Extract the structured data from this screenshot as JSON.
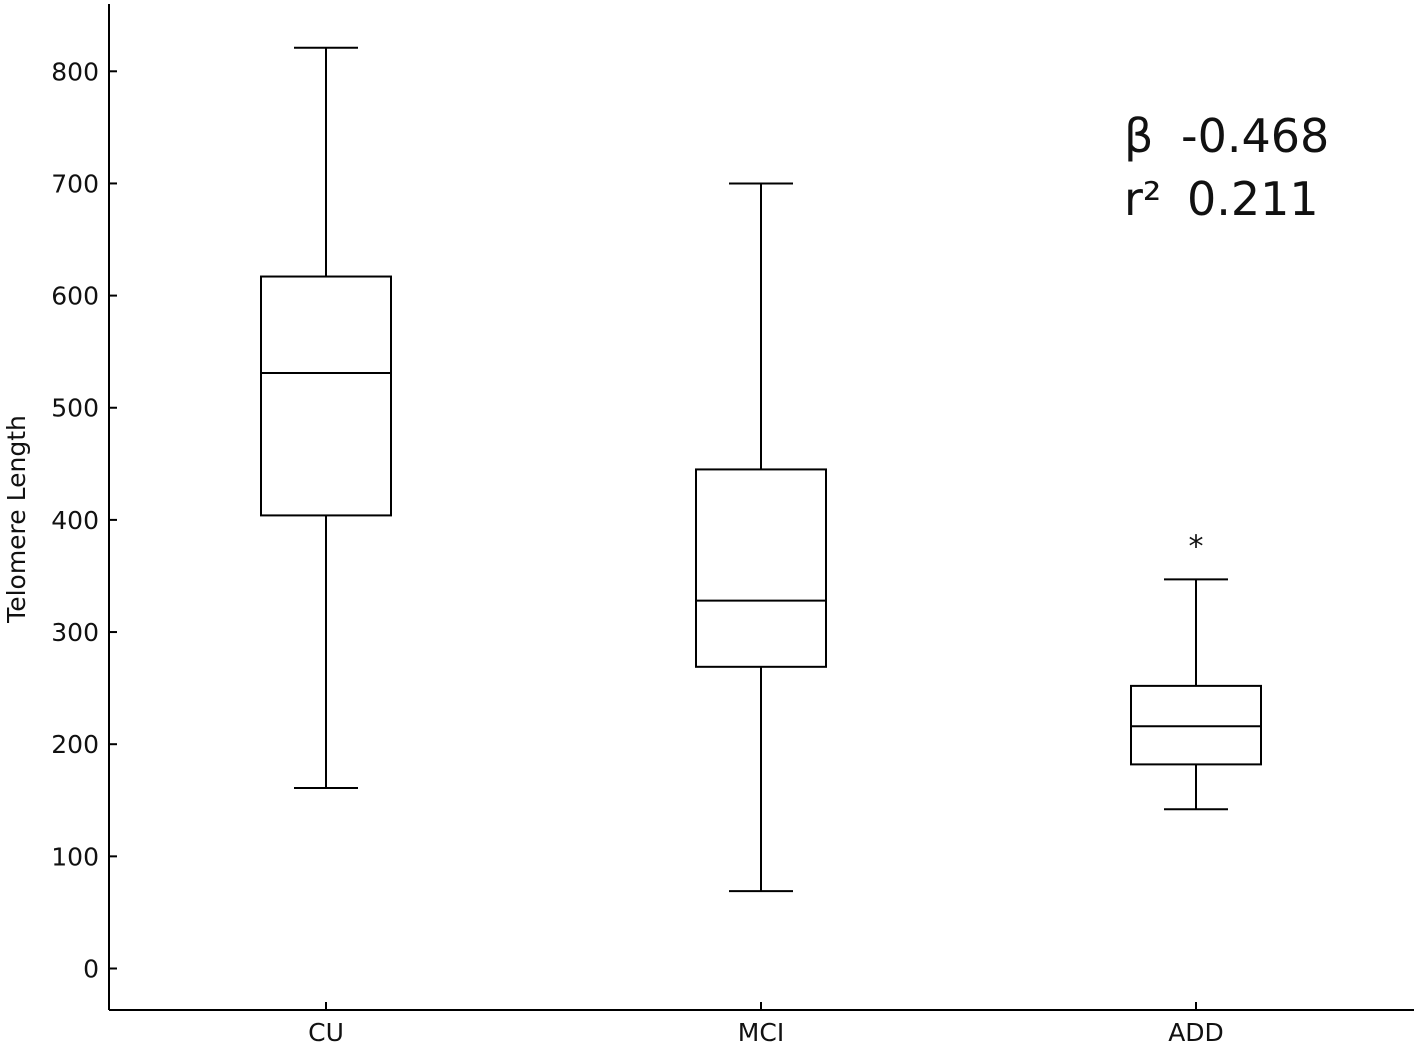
{
  "chart_data": {
    "type": "box",
    "ylabel": "Telomere Length",
    "xlabel": "",
    "ylim": [
      -37,
      860
    ],
    "yticks": [
      0,
      100,
      200,
      300,
      400,
      500,
      600,
      700,
      800
    ],
    "categories": [
      "CU",
      "MCI",
      "ADD"
    ],
    "boxes": [
      {
        "category": "CU",
        "whisker_low": 161,
        "q1": 404,
        "median": 531,
        "q3": 617,
        "whisker_high": 821
      },
      {
        "category": "MCI",
        "whisker_low": 69,
        "q1": 269,
        "median": 328,
        "q3": 445,
        "whisker_high": 700
      },
      {
        "category": "ADD",
        "whisker_low": 142,
        "q1": 182,
        "median": 216,
        "q3": 252,
        "whisker_high": 347
      }
    ],
    "outliers": [
      {
        "category": "ADD",
        "symbol": "*",
        "value": 380
      }
    ],
    "annotations": {
      "beta_label": "β",
      "beta_value": "-0.468",
      "r2_label": "r²",
      "r2_value": "0.211"
    },
    "grid": false,
    "legend": "none"
  }
}
